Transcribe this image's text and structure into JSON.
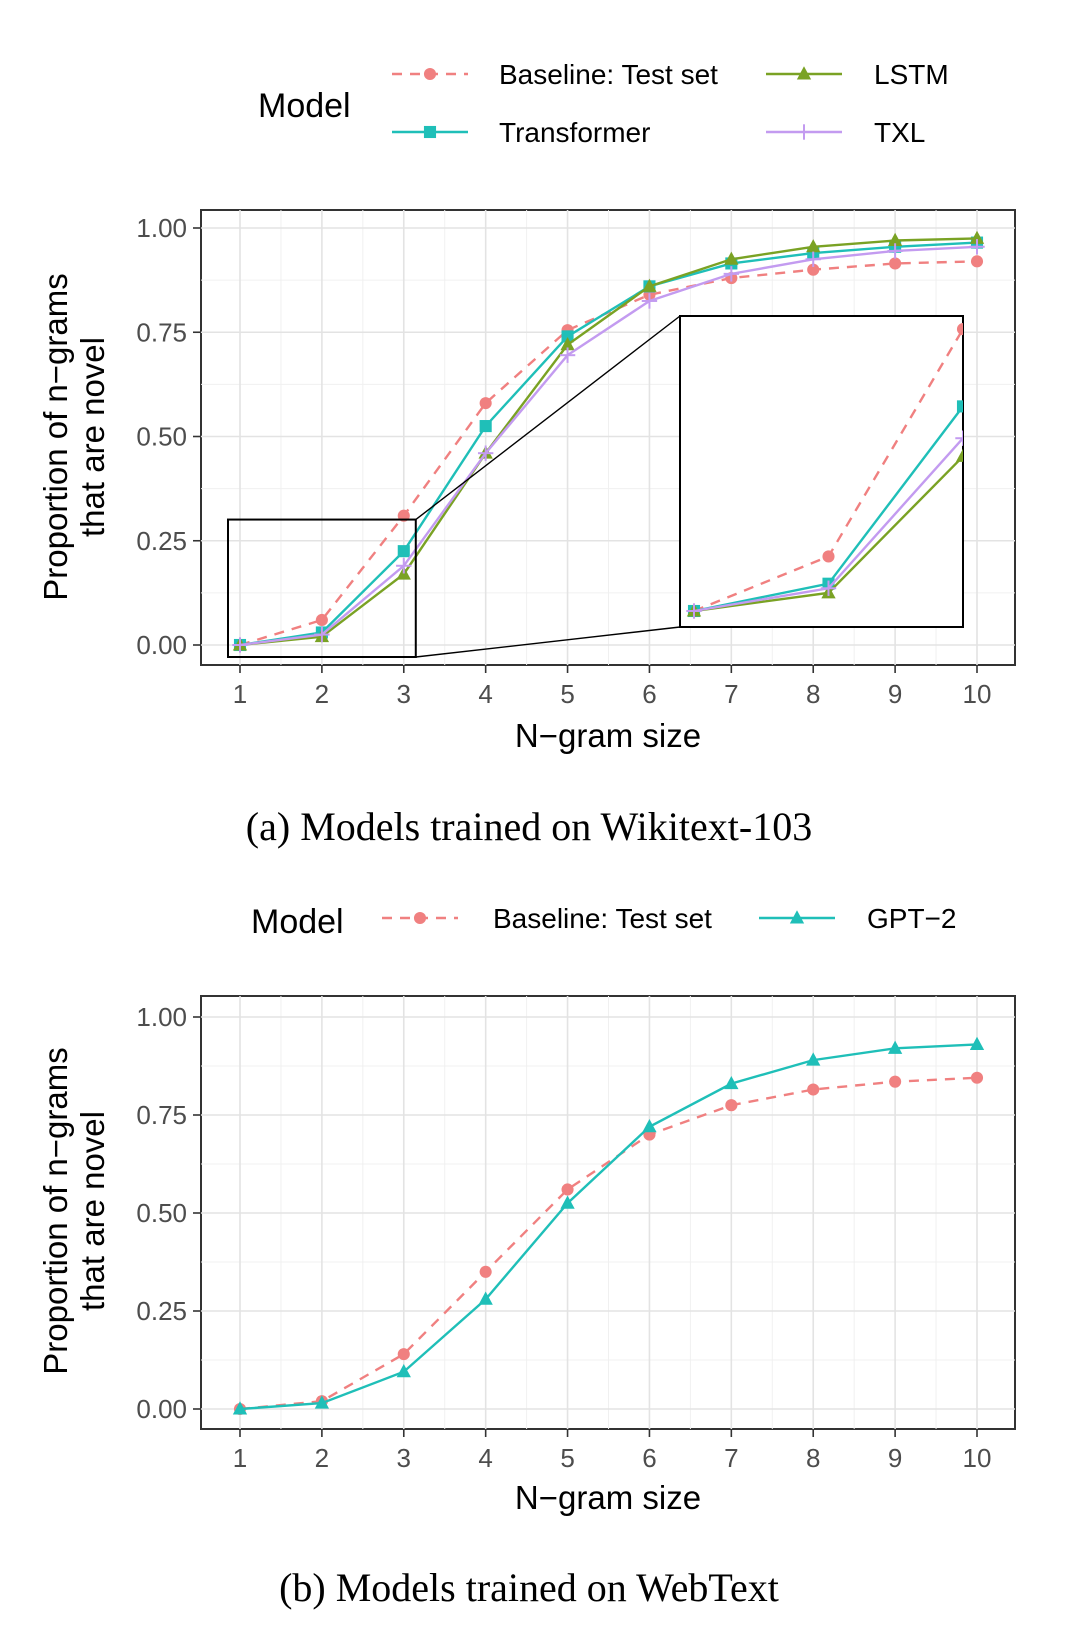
{
  "chart_data": [
    {
      "type": "line",
      "caption": "(a) Models trained on Wikitext-103",
      "legend_title": "Model",
      "xlabel": "N−gram size",
      "ylabel_line1": "Proportion of n−grams",
      "ylabel_line2": "that are novel",
      "x": [
        1,
        2,
        3,
        4,
        5,
        6,
        7,
        8,
        9,
        10
      ],
      "x_tick_labels": [
        "1",
        "2",
        "3",
        "4",
        "5",
        "6",
        "7",
        "8",
        "9",
        "10"
      ],
      "ylim": [
        0,
        1
      ],
      "y_ticks": [
        0,
        0.25,
        0.5,
        0.75,
        1
      ],
      "y_tick_labels": [
        "0.00",
        "0.25",
        "0.50",
        "0.75",
        "1.00"
      ],
      "grid": true,
      "inset": {
        "x_range": [
          1,
          3
        ],
        "y_range": [
          0,
          0.32
        ]
      },
      "series": [
        {
          "name": "Baseline: Test set",
          "color": "#f08080",
          "dash": "dashed",
          "marker": "circle",
          "values": [
            0.0,
            0.06,
            0.31,
            0.58,
            0.755,
            0.84,
            0.88,
            0.9,
            0.915,
            0.92
          ]
        },
        {
          "name": "Transformer",
          "color": "#1fbfb8",
          "dash": "solid",
          "marker": "square",
          "values": [
            0.0,
            0.03,
            0.225,
            0.525,
            0.74,
            0.86,
            0.915,
            0.94,
            0.955,
            0.965
          ]
        },
        {
          "name": "LSTM",
          "color": "#7aa224",
          "dash": "solid",
          "marker": "triangle",
          "values": [
            0.0,
            0.02,
            0.17,
            0.46,
            0.72,
            0.86,
            0.925,
            0.955,
            0.97,
            0.975
          ]
        },
        {
          "name": "TXL",
          "color": "#c39bf0",
          "dash": "solid",
          "marker": "plus",
          "values": [
            0.0,
            0.025,
            0.19,
            0.46,
            0.695,
            0.825,
            0.89,
            0.925,
            0.945,
            0.955
          ]
        }
      ]
    },
    {
      "type": "line",
      "caption": "(b) Models trained on WebText",
      "legend_title": "Model",
      "xlabel": "N−gram size",
      "ylabel_line1": "Proportion of n−grams",
      "ylabel_line2": "that are novel",
      "x": [
        1,
        2,
        3,
        4,
        5,
        6,
        7,
        8,
        9,
        10
      ],
      "x_tick_labels": [
        "1",
        "2",
        "3",
        "4",
        "5",
        "6",
        "7",
        "8",
        "9",
        "10"
      ],
      "ylim": [
        0,
        1
      ],
      "y_ticks": [
        0,
        0.25,
        0.5,
        0.75,
        1
      ],
      "y_tick_labels": [
        "0.00",
        "0.25",
        "0.50",
        "0.75",
        "1.00"
      ],
      "grid": true,
      "series": [
        {
          "name": "Baseline: Test set",
          "color": "#f08080",
          "dash": "dashed",
          "marker": "circle",
          "values": [
            0.0,
            0.02,
            0.14,
            0.35,
            0.56,
            0.7,
            0.775,
            0.815,
            0.835,
            0.845
          ]
        },
        {
          "name": "GPT−2",
          "color": "#1fbfb8",
          "dash": "solid",
          "marker": "triangle",
          "values": [
            0.0,
            0.015,
            0.095,
            0.28,
            0.525,
            0.72,
            0.83,
            0.89,
            0.92,
            0.93
          ]
        }
      ]
    }
  ]
}
